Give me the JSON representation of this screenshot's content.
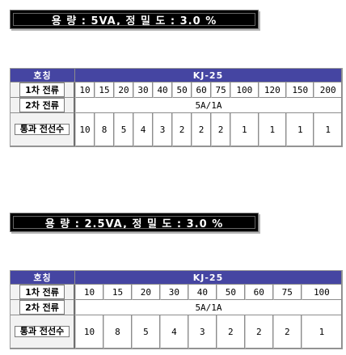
{
  "sections": [
    {
      "banner": "용 량 : 5VA, 정 밀 도 : 3.0 %",
      "header_label": "호칭",
      "model": "KJ-25",
      "primary_label": "1차 전류",
      "primary_values": [
        "10",
        "15",
        "20",
        "30",
        "40",
        "50",
        "60",
        "75",
        "100",
        "120",
        "150",
        "200"
      ],
      "secondary_label": "2차 전류",
      "secondary_value": "5A/1A",
      "turns_label": "통과 전선수",
      "turns_values": [
        "10",
        "8",
        "5",
        "4",
        "3",
        "2",
        "2",
        "2",
        "1",
        "1",
        "1",
        "1"
      ]
    },
    {
      "banner": "용 량 : 2.5VA, 정 밀 도 : 3.0 %",
      "header_label": "호칭",
      "model": "KJ-25",
      "primary_label": "1차 전류",
      "primary_values": [
        "10",
        "15",
        "20",
        "30",
        "40",
        "50",
        "60",
        "75",
        "100"
      ],
      "secondary_label": "2차 전류",
      "secondary_value": "5A/1A",
      "turns_label": "통과 전선수",
      "turns_values": [
        "10",
        "8",
        "5",
        "4",
        "3",
        "2",
        "2",
        "2",
        "1"
      ]
    }
  ]
}
